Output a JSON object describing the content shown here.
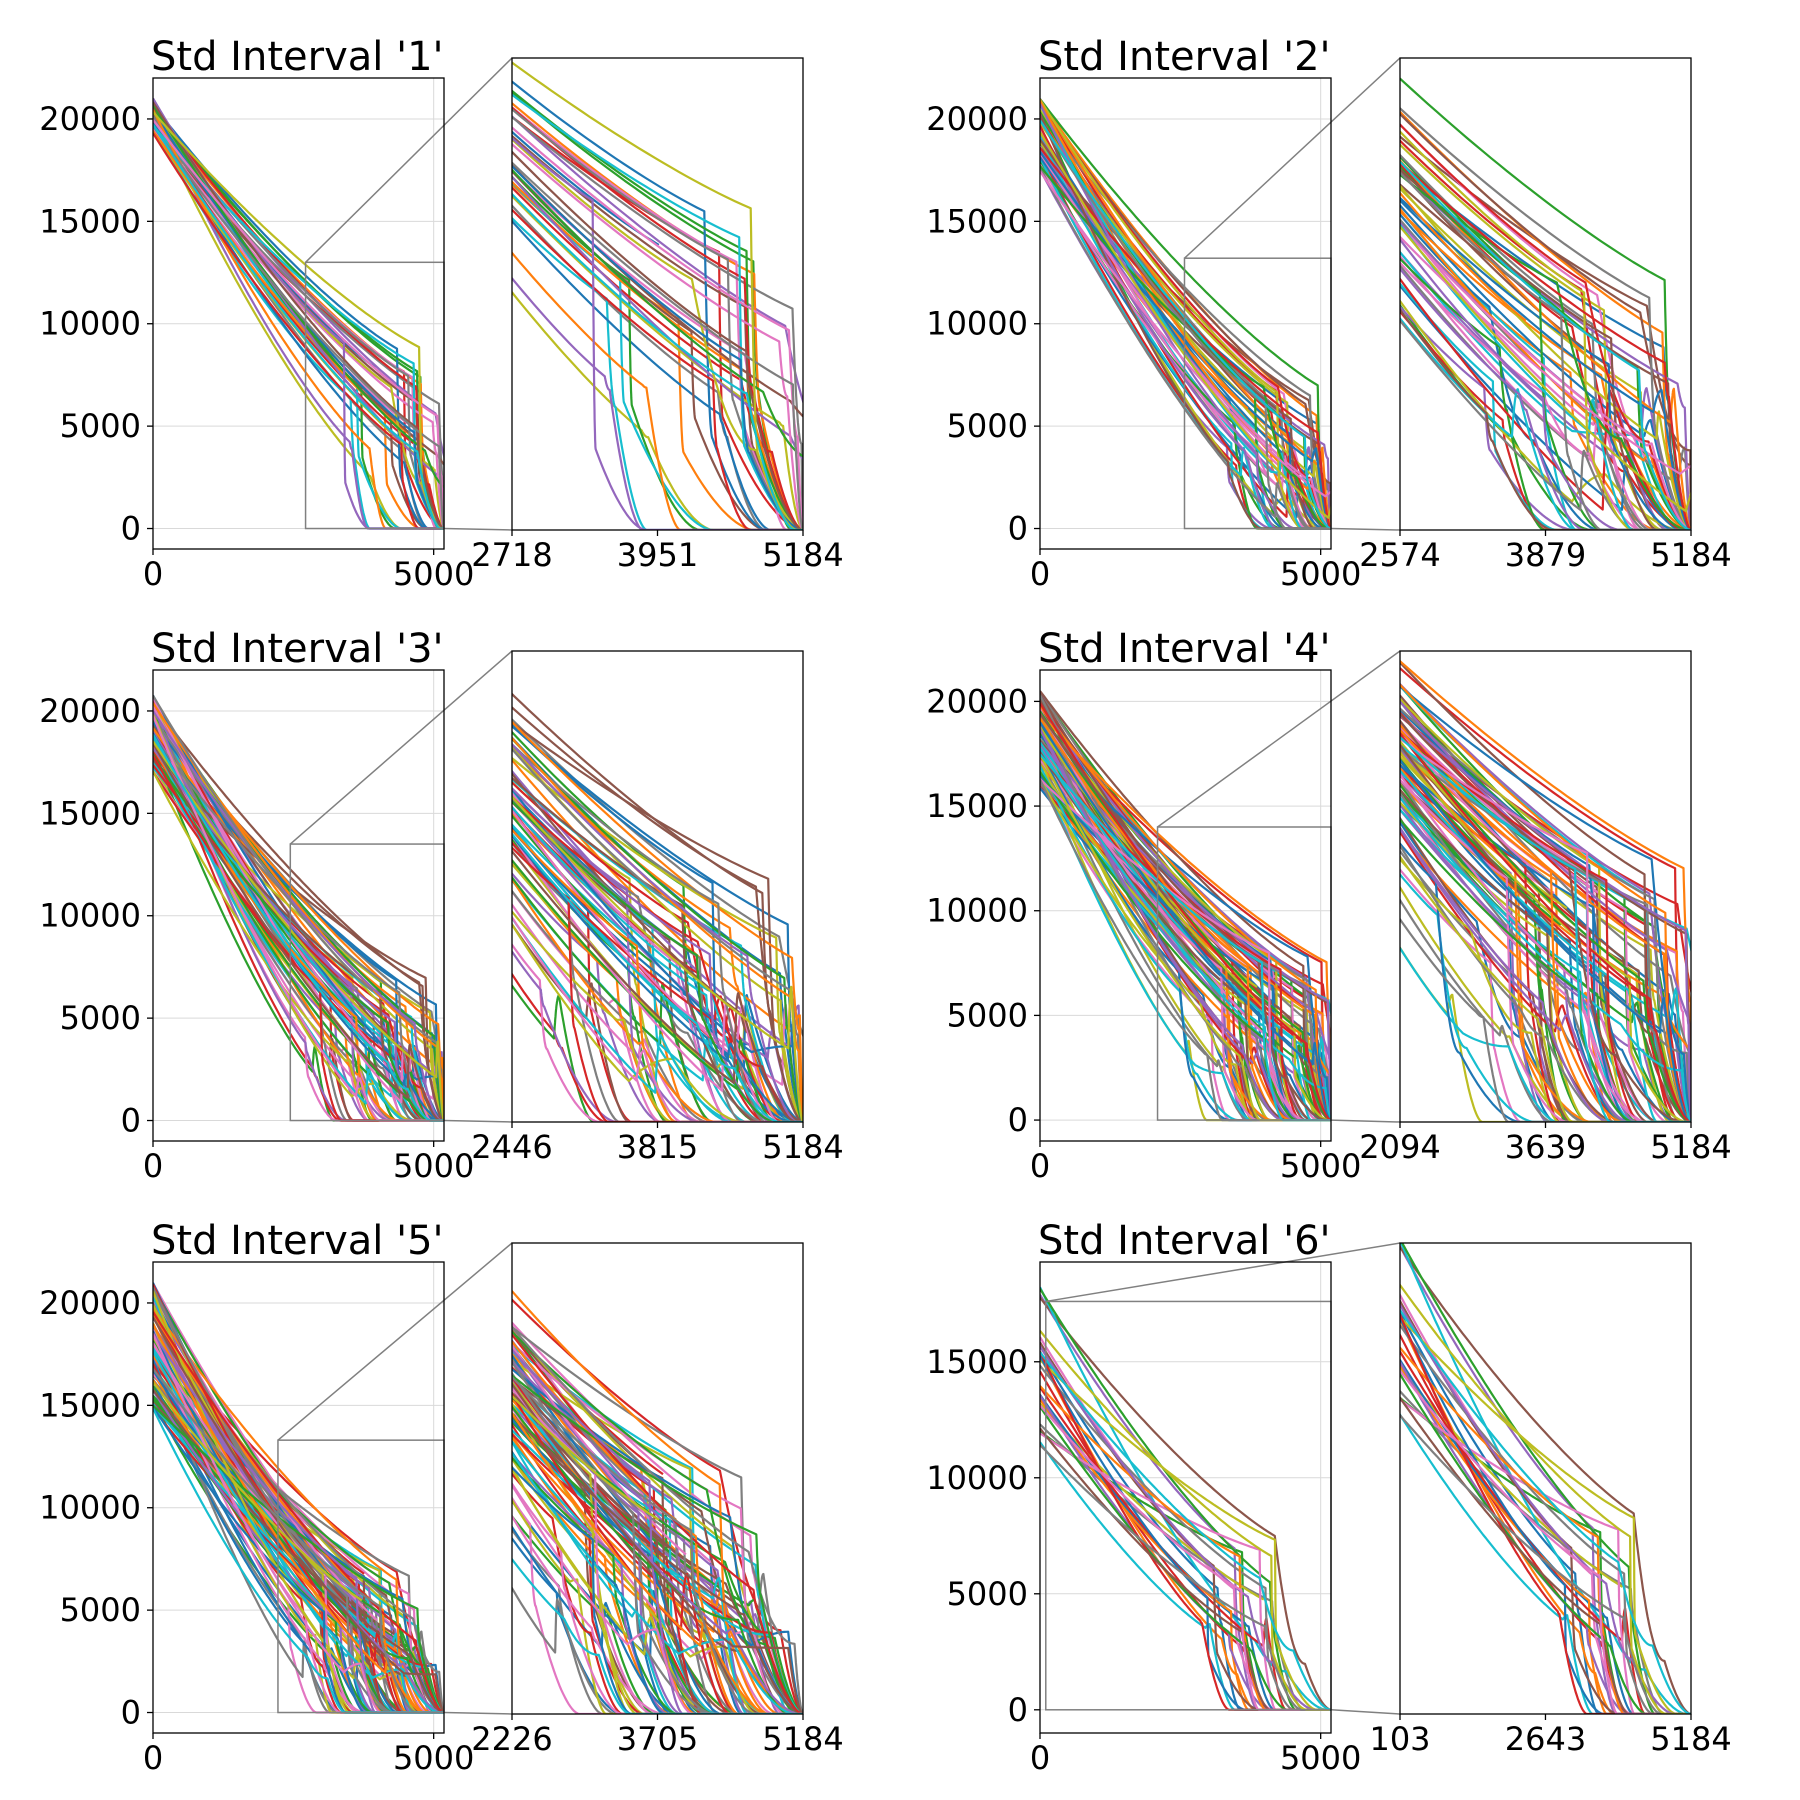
{
  "chart_data": [
    {
      "type": "line",
      "title": "Std Interval '1'",
      "main": {
        "xlim": [
          0,
          5184
        ],
        "ylim": [
          -1000,
          22000
        ],
        "xticks": [
          0,
          5000
        ],
        "yticks": [
          0,
          5000,
          10000,
          15000,
          20000
        ]
      },
      "inset": {
        "xlim": [
          2718,
          5184
        ],
        "ylim": [
          0,
          13000
        ],
        "xticks": [
          2718,
          3951,
          5184
        ]
      },
      "curves": {
        "n": 40,
        "start_y_min": 19300,
        "start_y_max": 21000,
        "drop_x_min": 3300,
        "drop_x_max": 5150,
        "knee_y_min": 2500,
        "knee_y_max": 9500
      },
      "colors": [
        "#1f77b4",
        "#ff7f0e",
        "#2ca02c",
        "#d62728",
        "#9467bd",
        "#8c564b",
        "#e377c2",
        "#7f7f7f",
        "#bcbd22",
        "#17becf"
      ]
    },
    {
      "type": "line",
      "title": "Std Interval '2'",
      "main": {
        "xlim": [
          0,
          5184
        ],
        "ylim": [
          -1000,
          22000
        ],
        "xticks": [
          0,
          5000
        ],
        "yticks": [
          0,
          5000,
          10000,
          15000,
          20000
        ]
      },
      "inset": {
        "xlim": [
          2574,
          5184
        ],
        "ylim": [
          0,
          13200
        ],
        "xticks": [
          2574,
          3879,
          5184
        ]
      },
      "curves": {
        "n": 60,
        "start_y_min": 17400,
        "start_y_max": 21000,
        "drop_x_min": 3200,
        "drop_x_max": 5150,
        "knee_y_min": 500,
        "knee_y_max": 7000
      },
      "colors": [
        "#1f77b4",
        "#ff7f0e",
        "#2ca02c",
        "#d62728",
        "#9467bd",
        "#8c564b",
        "#e377c2",
        "#7f7f7f",
        "#bcbd22",
        "#17becf"
      ]
    },
    {
      "type": "line",
      "title": "Std Interval '3'",
      "main": {
        "xlim": [
          0,
          5184
        ],
        "ylim": [
          -1000,
          22000
        ],
        "xticks": [
          0,
          5000
        ],
        "yticks": [
          0,
          5000,
          10000,
          15000,
          20000
        ]
      },
      "inset": {
        "xlim": [
          2446,
          5184
        ],
        "ylim": [
          0,
          13500
        ],
        "xticks": [
          2446,
          3815,
          5184
        ]
      },
      "curves": {
        "n": 80,
        "start_y_min": 17000,
        "start_y_max": 20800,
        "drop_x_min": 2500,
        "drop_x_max": 5100,
        "knee_y_min": 800,
        "knee_y_max": 7000
      },
      "colors": [
        "#1f77b4",
        "#ff7f0e",
        "#2ca02c",
        "#d62728",
        "#9467bd",
        "#8c564b",
        "#e377c2",
        "#7f7f7f",
        "#bcbd22",
        "#17becf"
      ]
    },
    {
      "type": "line",
      "title": "Std Interval '4'",
      "main": {
        "xlim": [
          0,
          5184
        ],
        "ylim": [
          -1000,
          21500
        ],
        "xticks": [
          0,
          5000
        ],
        "yticks": [
          0,
          5000,
          10000,
          15000,
          20000
        ]
      },
      "inset": {
        "xlim": [
          2094,
          5184
        ],
        "ylim": [
          0,
          14000
        ],
        "xticks": [
          2094,
          3639,
          5184
        ]
      },
      "curves": {
        "n": 100,
        "start_y_min": 15800,
        "start_y_max": 20500,
        "drop_x_min": 2400,
        "drop_x_max": 5150,
        "knee_y_min": 2500,
        "knee_y_max": 8000
      },
      "colors": [
        "#1f77b4",
        "#ff7f0e",
        "#2ca02c",
        "#d62728",
        "#9467bd",
        "#8c564b",
        "#e377c2",
        "#7f7f7f",
        "#bcbd22",
        "#17becf"
      ]
    },
    {
      "type": "line",
      "title": "Std Interval '5'",
      "main": {
        "xlim": [
          0,
          5184
        ],
        "ylim": [
          -1000,
          22000
        ],
        "xticks": [
          0,
          5000
        ],
        "yticks": [
          0,
          5000,
          10000,
          15000,
          20000
        ]
      },
      "inset": {
        "xlim": [
          2226,
          5184
        ],
        "ylim": [
          0,
          13300
        ],
        "xticks": [
          2226,
          3705,
          5184
        ]
      },
      "curves": {
        "n": 100,
        "start_y_min": 14800,
        "start_y_max": 21100,
        "drop_x_min": 2300,
        "drop_x_max": 4750,
        "knee_y_min": 1500,
        "knee_y_max": 7000
      },
      "colors": [
        "#1f77b4",
        "#ff7f0e",
        "#2ca02c",
        "#d62728",
        "#9467bd",
        "#8c564b",
        "#e377c2",
        "#7f7f7f",
        "#bcbd22",
        "#17becf"
      ]
    },
    {
      "type": "line",
      "title": "Std Interval '6'",
      "main": {
        "xlim": [
          0,
          5184
        ],
        "ylim": [
          -1000,
          19300
        ],
        "xticks": [
          0,
          5000
        ],
        "yticks": [
          0,
          5000,
          10000,
          15000
        ]
      },
      "inset": {
        "xlim": [
          103,
          5184
        ],
        "ylim": [
          0,
          17600
        ],
        "xticks": [
          103,
          2643,
          5184
        ]
      },
      "curves": {
        "n": 30,
        "start_y_min": 11000,
        "start_y_max": 18300,
        "drop_x_min": 2200,
        "drop_x_max": 4200,
        "knee_y_min": 2500,
        "knee_y_max": 7500
      },
      "colors": [
        "#1f77b4",
        "#ff7f0e",
        "#2ca02c",
        "#d62728",
        "#9467bd",
        "#8c564b",
        "#e377c2",
        "#7f7f7f",
        "#bcbd22",
        "#17becf"
      ]
    }
  ]
}
